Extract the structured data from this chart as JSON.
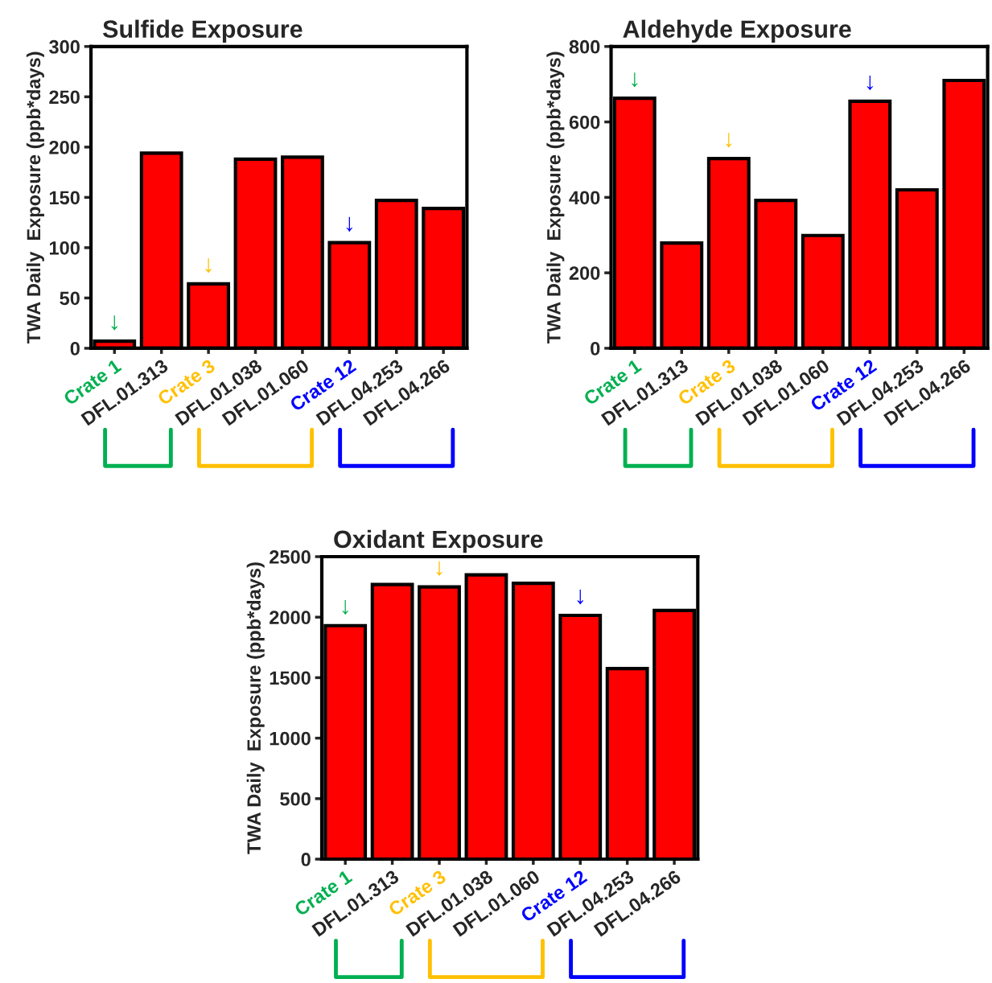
{
  "chart_data": [
    {
      "type": "bar",
      "title": "Sulfide Exposure",
      "ylabel": "TWA Daily  Exposure (ppb*days)",
      "categories": [
        "Crate 1",
        "DFL.01.313",
        "Crate 3",
        "DFL.01.038",
        "DFL.01.060",
        "Crate 12",
        "DFL.04.253",
        "DFL.04.266"
      ],
      "values": [
        7,
        194,
        64,
        188,
        190,
        105,
        147,
        139
      ],
      "color": "#ff0000",
      "ylim": [
        0,
        300
      ],
      "yticks": [
        0,
        50,
        100,
        150,
        200,
        250,
        300
      ],
      "grid": false,
      "annotations": [
        {
          "text": "↓",
          "x": "Crate 1",
          "y": 7
        },
        {
          "text": "↓",
          "x": "Crate 3",
          "y": 64
        },
        {
          "text": "↓",
          "x": "Crate 12",
          "y": 105
        }
      ]
    },
    {
      "type": "bar",
      "title": "Aldehyde Exposure",
      "ylabel": "TWA Daily  Exposure (ppb*days)",
      "categories": [
        "Crate 1",
        "DFL.01.313",
        "Crate 3",
        "DFL.01.038",
        "DFL.01.060",
        "Crate 12",
        "DFL.04.253",
        "DFL.04.266"
      ],
      "values": [
        663,
        279,
        503,
        392,
        299,
        655,
        420,
        710
      ],
      "color": "#ff0000",
      "ylim": [
        0,
        800
      ],
      "yticks": [
        0,
        200,
        400,
        600,
        800
      ],
      "grid": false,
      "annotations": [
        {
          "text": "↓",
          "x": "Crate 1",
          "y": 663
        },
        {
          "text": "↓",
          "x": "Crate 3",
          "y": 503
        },
        {
          "text": "↓",
          "x": "Crate 12",
          "y": 655
        }
      ]
    },
    {
      "type": "bar",
      "title": "Oxidant Exposure",
      "ylabel": "TWA Daily  Exposure (ppb*days)",
      "categories": [
        "Crate 1",
        "DFL.01.313",
        "Crate 3",
        "DFL.01.038",
        "DFL.01.060",
        "Crate 12",
        "DFL.04.253",
        "DFL.04.266"
      ],
      "values": [
        1930,
        2270,
        2250,
        2350,
        2280,
        2015,
        1575,
        2055
      ],
      "color": "#ff0000",
      "ylim": [
        0,
        2500
      ],
      "yticks": [
        0,
        500,
        1000,
        1500,
        2000,
        2500
      ],
      "grid": false,
      "annotations": [
        {
          "text": "↓",
          "x": "Crate 1",
          "y": 1930
        },
        {
          "text": "↓",
          "x": "Crate 3",
          "y": 2250
        },
        {
          "text": "↓",
          "x": "Crate 12",
          "y": 2015
        }
      ]
    }
  ]
}
